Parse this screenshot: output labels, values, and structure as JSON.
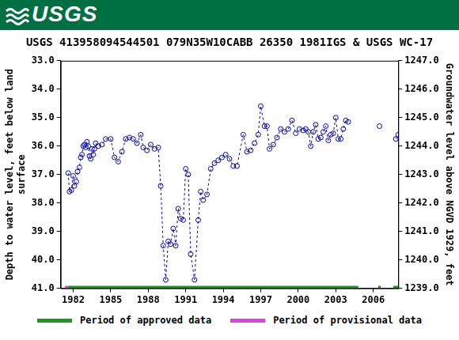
{
  "header": {
    "logo_text": "USGS"
  },
  "chart_data": {
    "type": "scatter",
    "title": "USGS 413958094544501 079N35W10CABB 26350 1981IGS & USGS WC-17",
    "y_label": [
      "Depth to water level, feet below land",
      "surface"
    ],
    "y2_label": "Groundwater level above NGVD 1929, feet",
    "x": [
      1981.6,
      1981.7,
      1981.85,
      1982.0,
      1982.1,
      1982.25,
      1982.35,
      1982.5,
      1982.6,
      1982.7,
      1982.8,
      1982.9,
      1983.0,
      1983.1,
      1983.2,
      1983.3,
      1983.4,
      1983.5,
      1983.6,
      1983.7,
      1983.8,
      1984.0,
      1984.3,
      1984.6,
      1985.0,
      1985.3,
      1985.6,
      1985.9,
      1986.2,
      1986.5,
      1986.8,
      1987.1,
      1987.4,
      1987.6,
      1987.9,
      1988.2,
      1988.5,
      1988.8,
      1989.0,
      1989.2,
      1989.4,
      1989.6,
      1989.8,
      1990.0,
      1990.2,
      1990.4,
      1990.6,
      1990.8,
      1991.0,
      1991.2,
      1991.4,
      1991.7,
      1992.0,
      1992.2,
      1992.4,
      1992.7,
      1993.0,
      1993.3,
      1993.6,
      1993.9,
      1994.2,
      1994.5,
      1994.8,
      1995.1,
      1995.6,
      1995.9,
      1996.2,
      1996.5,
      1996.8,
      1997.0,
      1997.3,
      1997.5,
      1997.7,
      1998.0,
      1998.3,
      1998.6,
      1998.9,
      1999.2,
      1999.5,
      1999.8,
      2000.1,
      2000.4,
      2000.6,
      2000.8,
      2001.0,
      2001.2,
      2001.4,
      2001.6,
      2001.8,
      2002.0,
      2002.2,
      2002.4,
      2002.6,
      2002.8,
      2003.0,
      2003.2,
      2003.4,
      2003.6,
      2003.8,
      2004.0,
      2005.0,
      2006.5,
      2007.0,
      2007.8,
      2008.0
    ],
    "series": [
      {
        "color": "#0000cc",
        "marker": "open_circle",
        "line_style": "dashed",
        "values": [
          36.95,
          37.6,
          37.55,
          37.05,
          37.4,
          37.25,
          36.9,
          36.75,
          36.4,
          36.3,
          36.0,
          35.95,
          36.05,
          35.85,
          36.0,
          36.35,
          36.45,
          36.1,
          36.3,
          36.1,
          35.9,
          36.0,
          35.95,
          35.75,
          35.75,
          36.4,
          36.55,
          36.2,
          35.75,
          35.7,
          35.75,
          35.9,
          35.6,
          36.05,
          36.15,
          35.95,
          36.1,
          36.05,
          37.4,
          39.5,
          40.7,
          39.35,
          39.45,
          38.9,
          39.5,
          38.2,
          38.55,
          38.6,
          36.8,
          37.0,
          39.8,
          40.7,
          38.6,
          37.6,
          37.9,
          37.7,
          36.8,
          36.6,
          36.5,
          36.4,
          36.3,
          36.45,
          36.7,
          36.7,
          35.6,
          36.2,
          36.15,
          35.9,
          35.6,
          34.6,
          35.3,
          35.3,
          36.1,
          35.95,
          35.7,
          35.4,
          35.5,
          35.4,
          35.1,
          35.55,
          35.4,
          35.45,
          35.4,
          35.5,
          36.0,
          35.5,
          35.25,
          35.75,
          35.7,
          35.5,
          35.3,
          35.8,
          35.6,
          35.55,
          35.0,
          35.75,
          35.75,
          35.4,
          35.1,
          35.15,
          null,
          35.3,
          null,
          35.75,
          35.6
        ]
      }
    ],
    "periods": [
      {
        "name": "Period of approved data",
        "color": "#1a9a1a",
        "ranges": [
          [
            1981.6,
            2004.8
          ],
          [
            2006.4,
            2006.6
          ],
          [
            2007.6,
            2008.0
          ]
        ]
      },
      {
        "name": "Period of provisional data",
        "color": "#e040e0",
        "ranges": [
          [
            1981.35,
            1981.6
          ]
        ]
      }
    ],
    "xlim": [
      1981,
      2008
    ],
    "xticks": [
      1982,
      1985,
      1988,
      1991,
      1994,
      1997,
      2000,
      2003,
      2006
    ],
    "ylim": [
      41,
      33
    ],
    "yticks": [
      {
        "value": 33,
        "label": "33.0"
      },
      {
        "value": 34,
        "label": "34.0"
      },
      {
        "value": 35,
        "label": "35.0"
      },
      {
        "value": 36,
        "label": "36.0"
      },
      {
        "value": 37,
        "label": "37.0"
      },
      {
        "value": 38,
        "label": "38.0"
      },
      {
        "value": 39,
        "label": "39.0"
      },
      {
        "value": 40,
        "label": "40.0"
      },
      {
        "value": 41,
        "label": "41.0"
      }
    ],
    "y2lim": [
      1239,
      1247
    ],
    "y2ticks": [
      {
        "value": 1247,
        "label": "1247.0"
      },
      {
        "value": 1246,
        "label": "1246.0"
      },
      {
        "value": 1245,
        "label": "1245.0"
      },
      {
        "value": 1244,
        "label": "1244.0"
      },
      {
        "value": 1243,
        "label": "1243.0"
      },
      {
        "value": 1242,
        "label": "1242.0"
      },
      {
        "value": 1241,
        "label": "1241.0"
      },
      {
        "value": 1240,
        "label": "1240.0"
      },
      {
        "value": 1239,
        "label": "1239.0"
      }
    ],
    "grid": false,
    "legend": "bottom"
  }
}
